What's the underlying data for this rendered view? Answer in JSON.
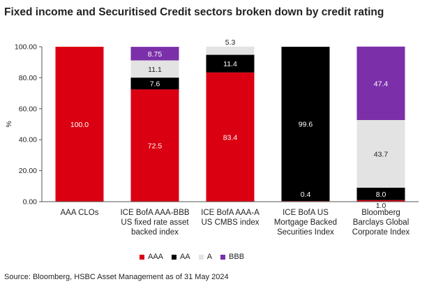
{
  "title": "Fixed income and Securitised Credit sectors broken down by credit rating",
  "source": "Source: Bloomberg, HSBC Asset Management as of 31 May 2024",
  "chart_data": {
    "type": "bar",
    "stacked": true,
    "ylabel": "%",
    "ylim": [
      0,
      100
    ],
    "yticks": [
      "0.00",
      "20.00",
      "40.00",
      "60.00",
      "80.00",
      "100.00"
    ],
    "grid": false,
    "legend_position": "bottom",
    "categories": [
      [
        "AAA CLOs"
      ],
      [
        "ICE BofA AAA-BBB",
        "US fixed rate asset",
        "backed index"
      ],
      [
        "ICE BofA AAA-A",
        "US CMBS index"
      ],
      [
        "ICE BofA US",
        "Mortgage Backed",
        "Securities Index"
      ],
      [
        "Bloomberg",
        "Barclays Global",
        "Corporate Index"
      ]
    ],
    "series": [
      {
        "name": "AAA",
        "color": "#db0011",
        "values": [
          100.0,
          72.5,
          83.4,
          0.4,
          1.0
        ],
        "labels": [
          "100.0",
          "72.5",
          "83.4",
          "0.4",
          "1.0"
        ]
      },
      {
        "name": "AA",
        "color": "#000000",
        "values": [
          0,
          7.6,
          11.4,
          99.6,
          8.0
        ],
        "labels": [
          "",
          "7.6",
          "11.4",
          "99.6",
          "8.0"
        ]
      },
      {
        "name": "A",
        "color": "#e3e3e3",
        "values": [
          0,
          11.1,
          5.3,
          0,
          43.7
        ],
        "labels": [
          "",
          "11.1",
          "5.3",
          "",
          "43.7"
        ]
      },
      {
        "name": "BBB",
        "color": "#7b2fa8",
        "values": [
          0,
          8.75,
          0,
          0,
          47.4
        ],
        "labels": [
          "",
          "8.75",
          "",
          "",
          "47.4"
        ]
      }
    ]
  }
}
